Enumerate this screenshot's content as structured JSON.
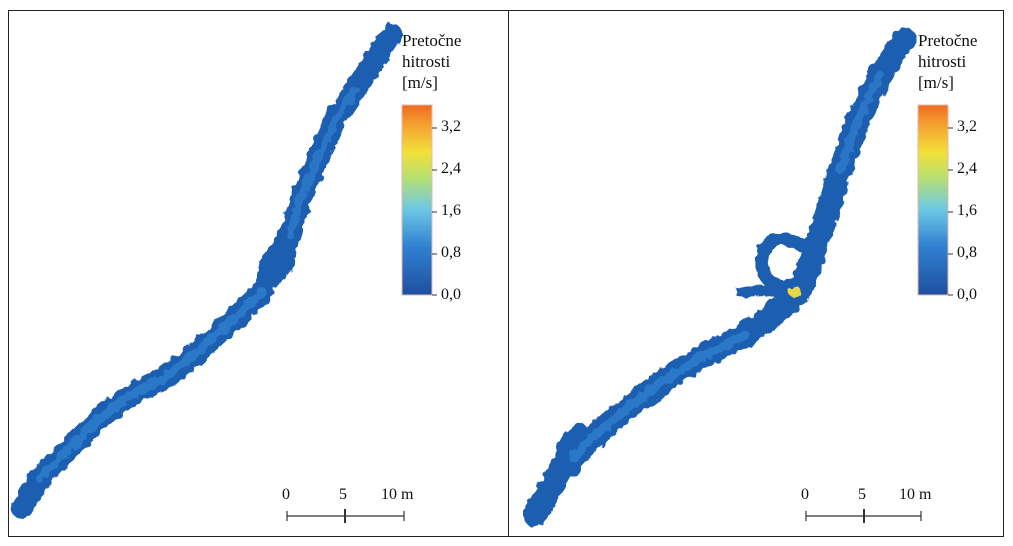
{
  "panels": [
    {
      "legend": {
        "title_lines": [
          "Pretočne",
          "hitrosti",
          "[m/s]"
        ],
        "ticks": [
          "3,2",
          "2,4",
          "1,6",
          "0,8",
          "0,0"
        ]
      },
      "scale_bar": {
        "labels": [
          "0",
          "5",
          "10 m"
        ]
      }
    },
    {
      "legend": {
        "title_lines": [
          "Pretočne",
          "hitrosti",
          "[m/s]"
        ],
        "ticks": [
          "3,2",
          "2,4",
          "1,6",
          "0,8",
          "0,0"
        ]
      },
      "scale_bar": {
        "labels": [
          "0",
          "5",
          "10 m"
        ]
      }
    }
  ],
  "colors": {
    "low": "#1f5fb0",
    "mid": "#4fb7e0",
    "yellow": "#f2e03a",
    "high": "#f07020"
  }
}
